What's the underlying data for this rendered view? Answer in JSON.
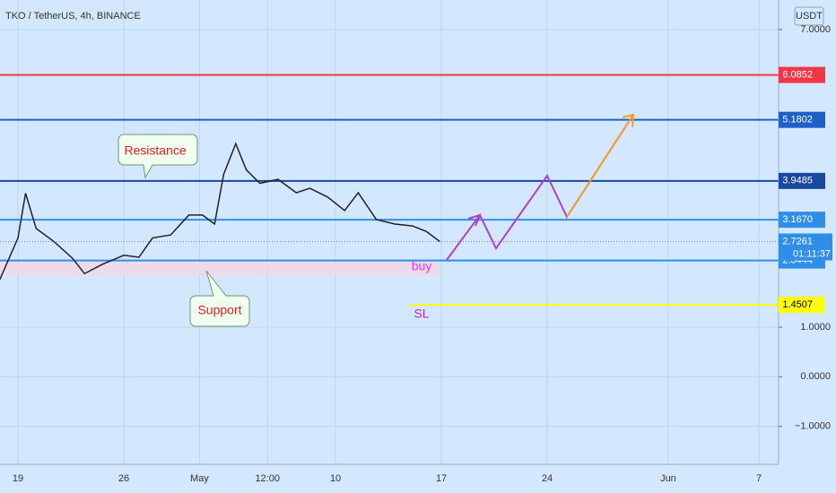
{
  "header": {
    "title": "TKO / TetherUS, 4h, BINANCE",
    "currency": "USDT"
  },
  "chart_data": {
    "type": "line",
    "x": [
      107.8,
      109,
      109.5,
      110.2,
      111.4,
      112.6,
      113.4,
      114.6,
      116,
      117,
      117.9,
      119.1,
      120.3,
      121.2,
      122,
      122.6,
      123.4,
      124.1,
      125,
      126.2,
      127.4,
      128.3,
      129.5,
      130.6,
      131.5,
      132.7,
      133.9,
      135.1,
      136,
      136.9
    ],
    "series": [
      {
        "color": "#222222",
        "values": [
          1.96,
          2.8,
          3.7,
          2.99,
          2.72,
          2.39,
          2.08,
          2.27,
          2.45,
          2.41,
          2.8,
          2.86,
          3.26,
          3.26,
          3.08,
          4.08,
          4.7,
          4.17,
          3.9,
          3.98,
          3.71,
          3.8,
          3.62,
          3.35,
          3.71,
          3.17,
          3.08,
          3.04,
          2.93,
          2.7261
        ]
      }
    ],
    "xlim": [
      107.81,
      159.3
    ],
    "xticks": [
      {
        "value": 109,
        "label": "19"
      },
      {
        "value": 116,
        "label": "26"
      },
      {
        "value": 121,
        "label": "May"
      },
      {
        "value": 125.5,
        "label": "12:00"
      },
      {
        "value": 130,
        "label": "10"
      },
      {
        "value": 137,
        "label": "17"
      },
      {
        "value": 144,
        "label": "24"
      },
      {
        "value": 152,
        "label": "Jun"
      },
      {
        "value": 158,
        "label": "7"
      }
    ],
    "ylim": [
      -1.765,
      7.596
    ],
    "yticks": [
      {
        "value": 7,
        "label": "7.0000"
      },
      {
        "value": 1,
        "label": "1.0000"
      },
      {
        "value": 0,
        "label": "0.0000"
      },
      {
        "value": -1,
        "label": "−1.0000"
      }
    ],
    "grid": true,
    "levels": [
      {
        "value": 6.0852,
        "color": "#f23645"
      },
      {
        "value": 5.1802,
        "color": "#1e60c8"
      },
      {
        "value": 3.9485,
        "color": "#1848a0"
      },
      {
        "value": 3.167,
        "label": "3.1670",
        "color": "#2f8fe8"
      },
      {
        "value": 2.3444,
        "color": "#2f8fe8"
      },
      {
        "value": 1.4507,
        "color": "#ffff00"
      }
    ],
    "current_price": 2.7261,
    "countdown": "01:11:37",
    "annotations": {
      "resistance": "Resistance",
      "support": "Support",
      "buy": "buy",
      "sl": "SL"
    }
  }
}
